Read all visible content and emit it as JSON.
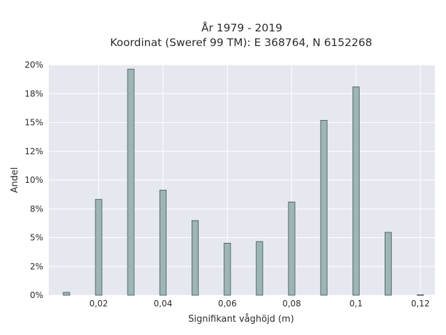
{
  "chart_data": {
    "type": "bar",
    "title_lines": [
      "År 1979 - 2019",
      "Koordinat (Sweref 99 TM): E 368764, N 6152268"
    ],
    "xlabel": "Signifikant våghöjd (m)",
    "ylabel": "Andel",
    "x": [
      0.01,
      0.02,
      0.03,
      0.04,
      0.05,
      0.06,
      0.07,
      0.08,
      0.09,
      0.1,
      0.11,
      0.12
    ],
    "values": [
      0.0025,
      0.0832,
      0.1963,
      0.0913,
      0.0648,
      0.0452,
      0.0466,
      0.081,
      0.1519,
      0.1809,
      0.0546,
      0.0004
    ],
    "bar_width": 0.002,
    "xlim": [
      0.0045,
      0.1245
    ],
    "ylim": [
      0,
      0.2
    ],
    "x_ticks": [
      0.02,
      0.04,
      0.06,
      0.08,
      0.1,
      0.12
    ],
    "x_tick_labels": [
      "0,02",
      "0,04",
      "0,06",
      "0,08",
      "0,1",
      "0,12"
    ],
    "y_ticks": [
      0,
      0.025,
      0.05,
      0.075,
      0.1,
      0.125,
      0.15,
      0.175,
      0.2
    ],
    "y_tick_labels": [
      "0%",
      "2%",
      "5%",
      "8%",
      "10%",
      "12%",
      "15%",
      "18%",
      "20%"
    ],
    "grid": true,
    "colors": {
      "plot_background": "#e5e8ef",
      "grid": "#ffffff",
      "bar_fill": "#9db5b5",
      "bar_stroke": "#3d4f4f"
    }
  }
}
